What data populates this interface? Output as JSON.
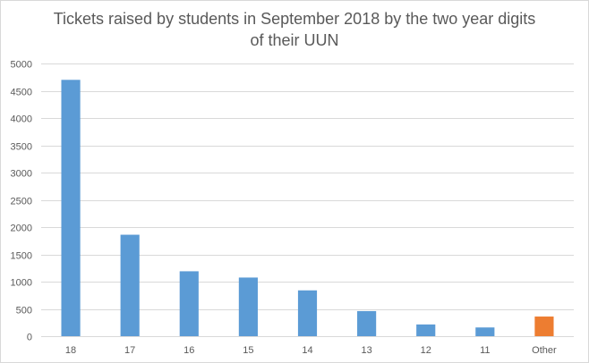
{
  "chart_data": {
    "type": "bar",
    "title_lines": [
      "Tickets raised by students in September 2018 by the two year digits",
      "of their UUN"
    ],
    "xlabel": "",
    "ylabel": "",
    "categories": [
      "18",
      "17",
      "16",
      "15",
      "14",
      "13",
      "12",
      "11",
      "Other"
    ],
    "values": [
      4700,
      1860,
      1190,
      1075,
      840,
      460,
      215,
      160,
      360
    ],
    "colors": [
      "#5b9bd5",
      "#5b9bd5",
      "#5b9bd5",
      "#5b9bd5",
      "#5b9bd5",
      "#5b9bd5",
      "#5b9bd5",
      "#5b9bd5",
      "#ed7d31"
    ],
    "ylim": [
      0,
      5000
    ],
    "yticks": [
      0,
      500,
      1000,
      1500,
      2000,
      2500,
      3000,
      3500,
      4000,
      4500,
      5000
    ],
    "grid": true,
    "legend": "none"
  }
}
